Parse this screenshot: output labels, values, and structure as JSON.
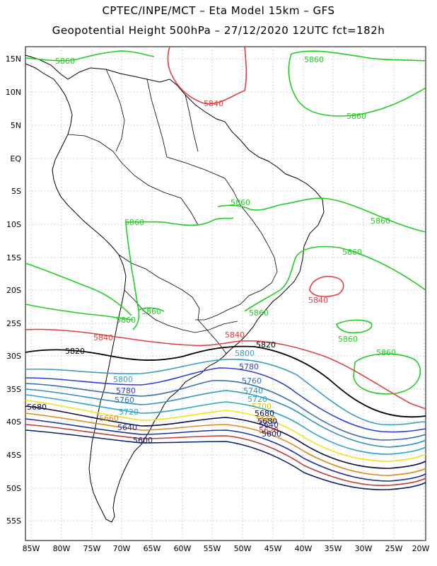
{
  "header": {
    "line1": "CPTEC/INPE/MCT –  Eta Model 15km – GFS",
    "line2": "Geopotential Height 500hPa – 27/12/2020 12UTC fct=182h"
  },
  "axes": {
    "lat_labels": [
      "15N",
      "10N",
      "5N",
      "EQ",
      "5S",
      "10S",
      "15S",
      "20S",
      "25S",
      "30S",
      "35S",
      "40S",
      "45S",
      "50S",
      "55S"
    ],
    "lon_labels": [
      "85W",
      "80W",
      "75W",
      "70W",
      "65W",
      "60W",
      "55W",
      "50W",
      "45W",
      "40W",
      "35W",
      "30W",
      "25W",
      "20W"
    ]
  },
  "colors": {
    "5600": "#0b1f6b",
    "5620": "#c23a3a",
    "5640": "#1e2f9c",
    "5660": "#d98a1e",
    "5680": "#0a0a40",
    "5700": "#f2e21a",
    "5720": "#2aa4c9",
    "5740": "#2f8fbf",
    "5760": "#3570b0",
    "5780": "#2b3fd6",
    "5800": "#3a9ec2",
    "5820": "#000000",
    "5840": "#e04040",
    "5860": "#22cc22"
  },
  "contour_labels": {
    "green": [
      "5860",
      "5860",
      "5860",
      "5860",
      "5860",
      "5860",
      "5860",
      "5860",
      "5860",
      "5860",
      "5860"
    ],
    "red": [
      "5840",
      "5840",
      "5840",
      "5840"
    ],
    "black": [
      "5820",
      "5820"
    ],
    "band": [
      "5800",
      "5800",
      "5780",
      "5780",
      "5760",
      "5760",
      "5740",
      "5720",
      "5720",
      "5700",
      "5680",
      "5680",
      "5680",
      "5660",
      "5660",
      "5640",
      "5640",
      "5620",
      "5600",
      "5600"
    ]
  }
}
